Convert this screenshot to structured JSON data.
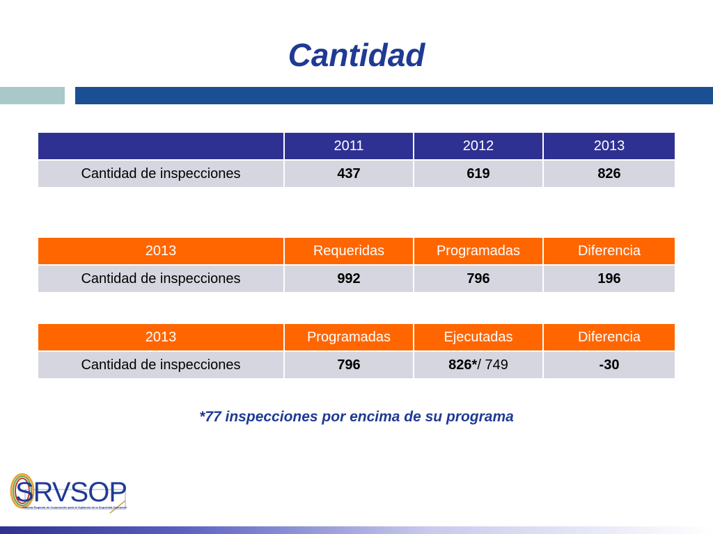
{
  "slide": {
    "title": "Cantidad",
    "footnote": "*77 inspecciones por encima de su programa"
  },
  "table1": {
    "headers": [
      "",
      "2011",
      "2012",
      "2013"
    ],
    "row": {
      "label": "Cantidad de inspecciones",
      "values": [
        "437",
        "619",
        "826"
      ]
    }
  },
  "table2": {
    "headers": [
      "2013",
      "Requeridas",
      "Programadas",
      "Diferencia"
    ],
    "row": {
      "label": "Cantidad de inspecciones",
      "values": [
        "992",
        "796",
        "196"
      ]
    }
  },
  "table3": {
    "headers": [
      "2013",
      "Programadas",
      "Ejecutadas",
      "Diferencia"
    ],
    "row": {
      "label": "Cantidad de inspecciones",
      "values": [
        "796",
        "826*",
        "-30"
      ],
      "ejecutadas_suffix": "/ 749"
    }
  },
  "logo": {
    "text": "SRVSOP",
    "subtitle": "Sistema Regional de Cooperación para la Vigilancia de la Seguridad Operacional"
  },
  "colors": {
    "title": "#1f3a93",
    "header_blue": "#2e3192",
    "header_orange": "#ff6600",
    "row_bg": "#d6d6e0",
    "accent_bar_light": "#a9c9c9",
    "accent_bar_dark": "#1a4f93"
  }
}
